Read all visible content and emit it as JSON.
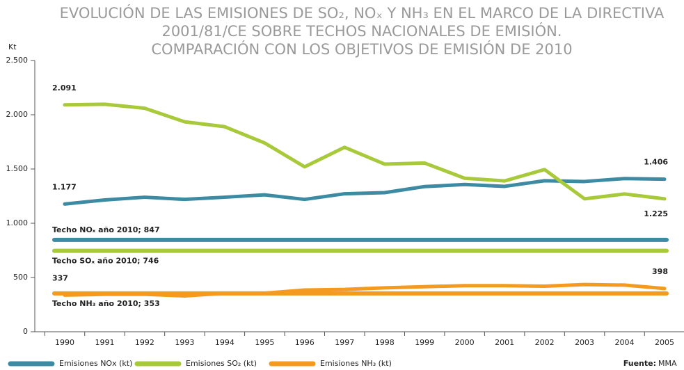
{
  "chart_data": {
    "type": "line",
    "title_lines": [
      "EVOLUCIÓN DE LAS EMISIONES DE SO₂, NOₓ Y NH₃ EN EL MARCO DE LA DIRECTIVA",
      "2001/81/CE SOBRE TECHOS NACIONALES DE EMISIÓN.",
      "COMPARACIÓN CON LOS OBJETIVOS DE EMISIÓN DE 2010"
    ],
    "y_label": "Kt",
    "categories": [
      "1990",
      "1991",
      "1992",
      "1993",
      "1994",
      "1995",
      "1996",
      "1997",
      "1998",
      "1999",
      "2000",
      "2001",
      "2002",
      "2003",
      "2004",
      "2005"
    ],
    "ylim": [
      0,
      2500
    ],
    "yticks": [
      0,
      500,
      {
        "value": 1000,
        "label": "1.000"
      },
      {
        "value": 1500,
        "label": "1.500"
      },
      {
        "value": 2000,
        "label": "2.000"
      },
      {
        "value": 2500,
        "label": "2.500"
      }
    ],
    "series": [
      {
        "name": "Emisiones NOx (kt)",
        "color": "#3d8aa3",
        "values": [
          1177,
          1215,
          1240,
          1220,
          1240,
          1262,
          1220,
          1272,
          1282,
          1338,
          1357,
          1340,
          1392,
          1385,
          1412,
          1406
        ],
        "value_labels": [
          "1.177",
          null,
          null,
          null,
          null,
          null,
          null,
          null,
          null,
          null,
          null,
          null,
          null,
          null,
          null,
          "1.406"
        ]
      },
      {
        "name": "Emisiones SO₂ (kt)",
        "color": "#a8c93a",
        "values": [
          2091,
          2097,
          2060,
          1935,
          1890,
          1740,
          1520,
          1700,
          1545,
          1555,
          1415,
          1390,
          1495,
          1225,
          1270,
          1225
        ],
        "value_labels": [
          "2.091",
          null,
          null,
          null,
          null,
          null,
          null,
          null,
          null,
          null,
          null,
          null,
          null,
          null,
          null,
          "1.225"
        ]
      },
      {
        "name": "Emisiones NH₃ (kt)",
        "color": "#f39a1f",
        "values": [
          337,
          345,
          345,
          330,
          355,
          355,
          385,
          390,
          405,
          415,
          425,
          425,
          420,
          435,
          430,
          398
        ],
        "value_labels": [
          "337",
          null,
          null,
          null,
          null,
          null,
          null,
          null,
          null,
          null,
          null,
          null,
          null,
          null,
          null,
          "398"
        ]
      }
    ],
    "ceilings": [
      {
        "label": "Techo NOₓ año 2010; 847",
        "value": 847,
        "color": "#3d8aa3"
      },
      {
        "label": "Techo SOₓ año 2010; 746",
        "value": 746,
        "color": "#a8c93a"
      },
      {
        "label": "Techo NH₃ año 2010; 353",
        "value": 353,
        "color": "#f39a1f"
      }
    ],
    "source_label": "Fuente:",
    "source": "MMA"
  }
}
